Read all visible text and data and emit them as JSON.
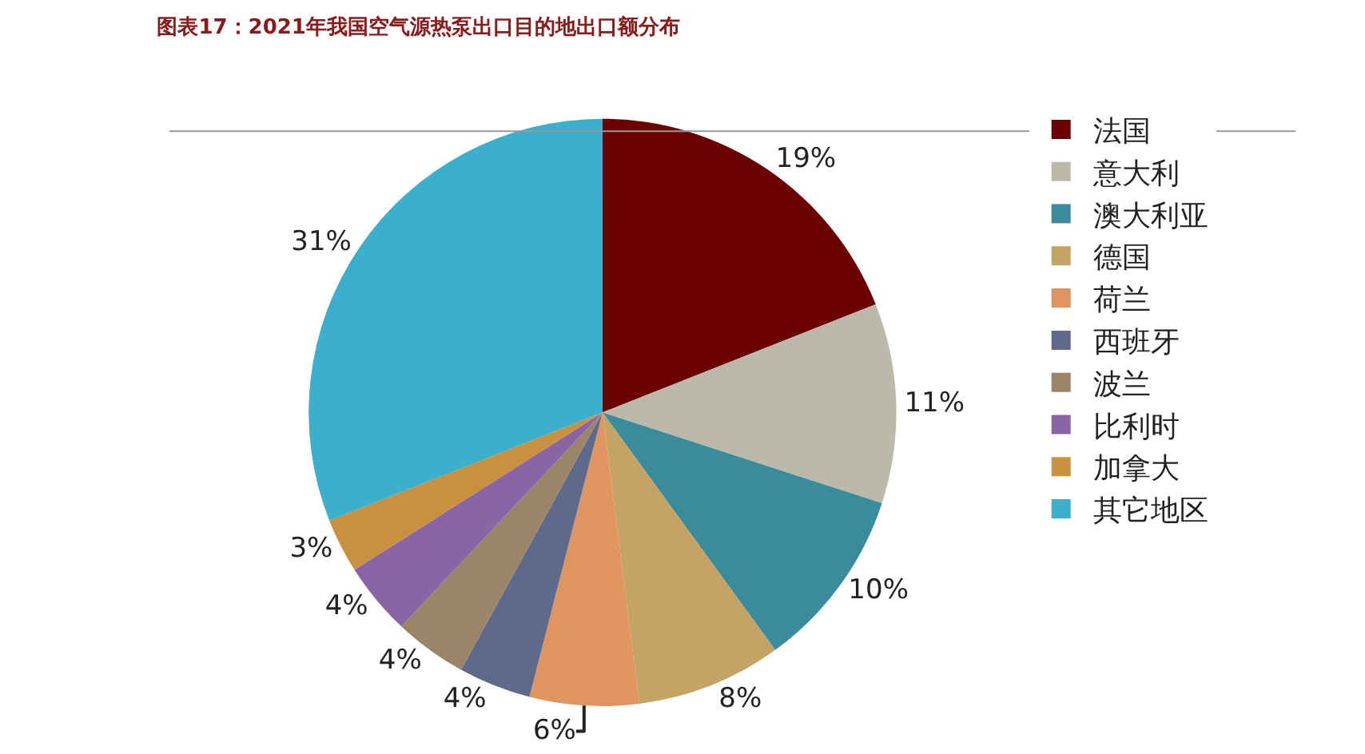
{
  "chart_data": {
    "type": "pie",
    "title": "图表17：2021年我国空气源热泵出口目的地出口额分布",
    "categories": [
      "法国",
      "意大利",
      "澳大利亚",
      "德国",
      "荷兰",
      "西班牙",
      "波兰",
      "比利时",
      "加拿大",
      "其它地区"
    ],
    "values": [
      19,
      11,
      10,
      8,
      6,
      4,
      4,
      4,
      3,
      31
    ],
    "value_labels": [
      "19%",
      "11%",
      "10%",
      "8%",
      "6%",
      "4%",
      "4%",
      "4%",
      "3%",
      "31%"
    ],
    "colors": [
      "#6b0000",
      "#bcb9a8",
      "#3a8c9c",
      "#c4a464",
      "#e0955e",
      "#5f6a8a",
      "#9c8468",
      "#8a64a4",
      "#c8903f",
      "#3ab0cc"
    ],
    "legend": "right"
  }
}
